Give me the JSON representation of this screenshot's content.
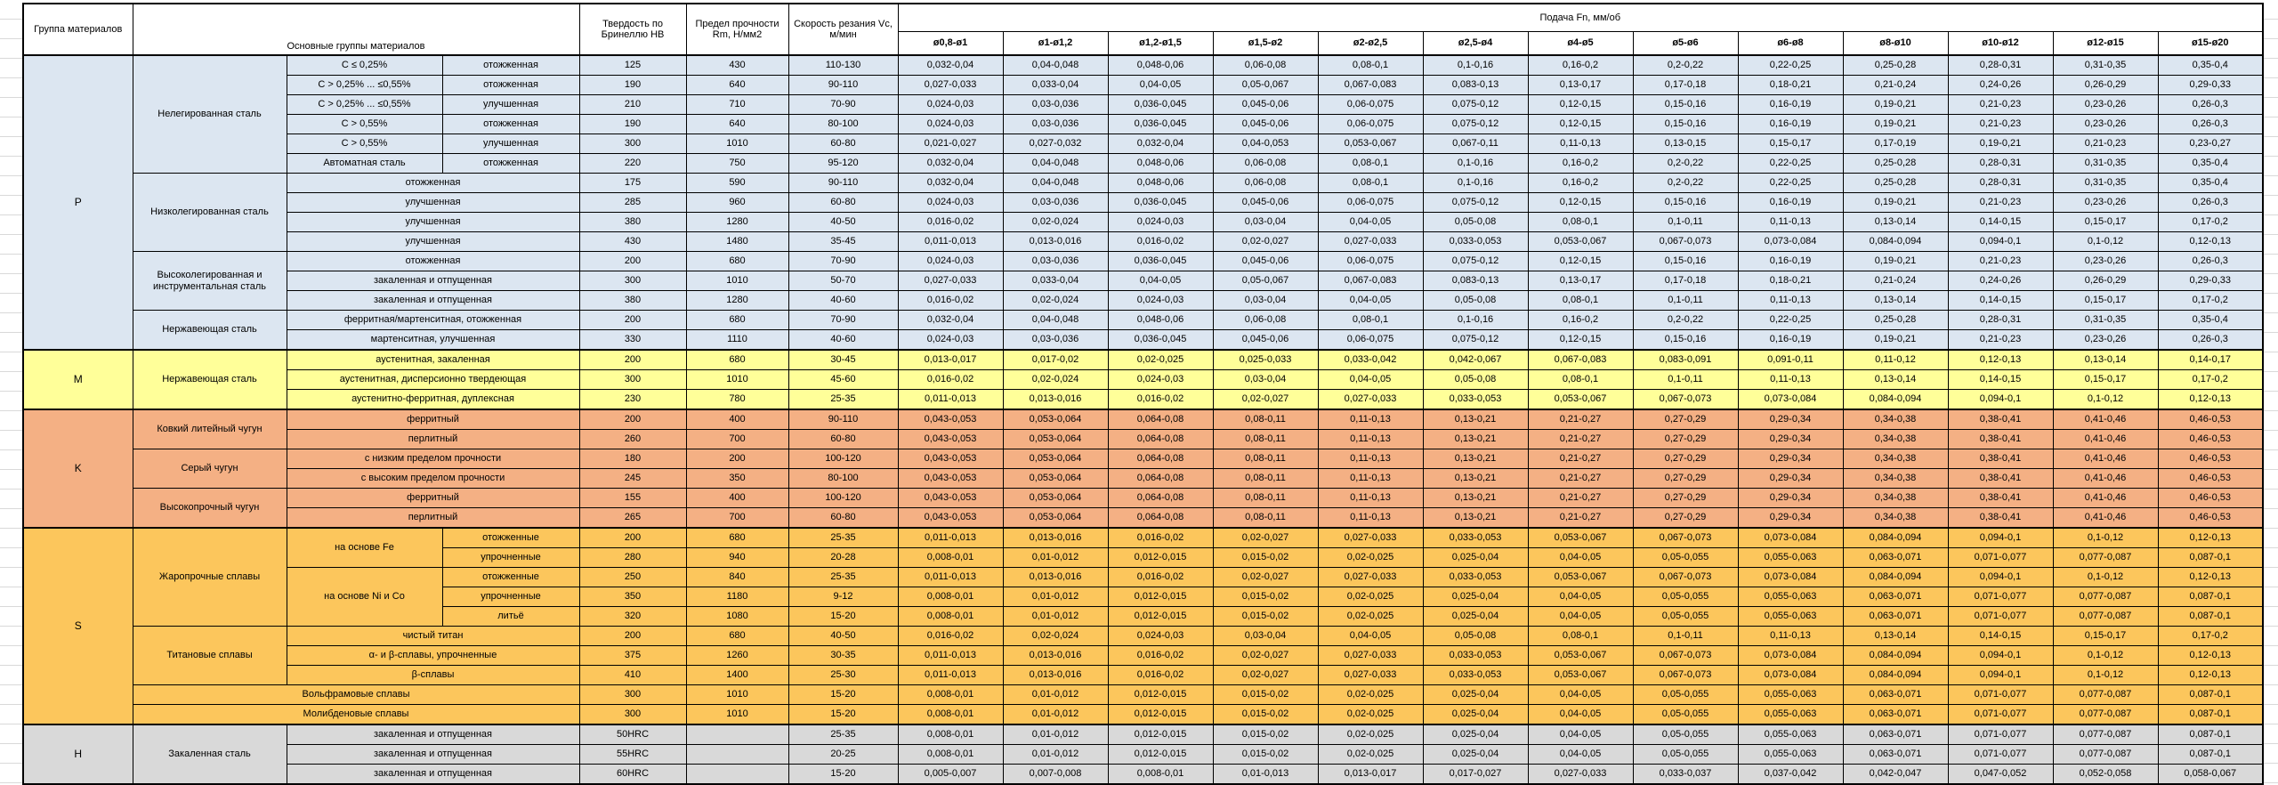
{
  "header": {
    "group_col": "Группа материалов",
    "materials_col": "Основные группы материалов",
    "hardness_col": "Твердость по Бринеллю HB",
    "strength_col": "Предел прочности Rm, Н/мм2",
    "speed_col": "Скорость резания Vc, м/мин",
    "feed_col": "Подача Fn, мм/об",
    "diameters": [
      "ø0,8-ø1",
      "ø1-ø1,2",
      "ø1,2-ø1,5",
      "ø1,5-ø2",
      "ø2-ø2,5",
      "ø2,5-ø4",
      "ø4-ø5",
      "ø5-ø6",
      "ø6-ø8",
      "ø8-ø10",
      "ø10-ø12",
      "ø12-ø15",
      "ø15-ø20"
    ]
  },
  "colors": {
    "P": "#DCE6F1",
    "M": "#FFFF99",
    "K": "#F4B084",
    "S": "#FCC65C",
    "H": "#D9D9D9"
  },
  "feed_patterns": {
    "A": [
      "0,032-0,04",
      "0,04-0,048",
      "0,048-0,06",
      "0,06-0,08",
      "0,08-0,1",
      "0,1-0,16",
      "0,16-0,2",
      "0,2-0,22",
      "0,22-0,25",
      "0,25-0,28",
      "0,28-0,31",
      "0,31-0,35",
      "0,35-0,4"
    ],
    "B": [
      "0,027-0,033",
      "0,033-0,04",
      "0,04-0,05",
      "0,05-0,067",
      "0,067-0,083",
      "0,083-0,13",
      "0,13-0,17",
      "0,17-0,18",
      "0,18-0,21",
      "0,21-0,24",
      "0,24-0,26",
      "0,26-0,29",
      "0,29-0,33"
    ],
    "C": [
      "0,024-0,03",
      "0,03-0,036",
      "0,036-0,045",
      "0,045-0,06",
      "0,06-0,075",
      "0,075-0,12",
      "0,12-0,15",
      "0,15-0,16",
      "0,16-0,19",
      "0,19-0,21",
      "0,21-0,23",
      "0,23-0,26",
      "0,26-0,3"
    ],
    "D": [
      "0,021-0,027",
      "0,027-0,032",
      "0,032-0,04",
      "0,04-0,053",
      "0,053-0,067",
      "0,067-0,11",
      "0,11-0,13",
      "0,13-0,15",
      "0,15-0,17",
      "0,17-0,19",
      "0,19-0,21",
      "0,21-0,23",
      "0,23-0,27"
    ],
    "E": [
      "0,016-0,02",
      "0,02-0,024",
      "0,024-0,03",
      "0,03-0,04",
      "0,04-0,05",
      "0,05-0,08",
      "0,08-0,1",
      "0,1-0,11",
      "0,11-0,13",
      "0,13-0,14",
      "0,14-0,15",
      "0,15-0,17",
      "0,17-0,2"
    ],
    "F": [
      "0,011-0,013",
      "0,013-0,016",
      "0,016-0,02",
      "0,02-0,027",
      "0,027-0,033",
      "0,033-0,053",
      "0,053-0,067",
      "0,067-0,073",
      "0,073-0,084",
      "0,084-0,094",
      "0,094-0,1",
      "0,1-0,12",
      "0,12-0,13"
    ],
    "G": [
      "0,008-0,01",
      "0,01-0,012",
      "0,012-0,015",
      "0,015-0,02",
      "0,02-0,025",
      "0,025-0,04",
      "0,04-0,05",
      "0,05-0,055",
      "0,055-0,063",
      "0,063-0,071",
      "0,071-0,077",
      "0,077-0,087",
      "0,087-0,1"
    ],
    "K": [
      "0,043-0,053",
      "0,053-0,064",
      "0,064-0,08",
      "0,08-0,11",
      "0,11-0,13",
      "0,13-0,21",
      "0,21-0,27",
      "0,27-0,29",
      "0,29-0,34",
      "0,34-0,38",
      "0,38-0,41",
      "0,41-0,46",
      "0,46-0,53"
    ],
    "M1": [
      "0,013-0,017",
      "0,017-0,02",
      "0,02-0,025",
      "0,025-0,033",
      "0,033-0,042",
      "0,042-0,067",
      "0,067-0,083",
      "0,083-0,091",
      "0,091-0,11",
      "0,11-0,12",
      "0,12-0,13",
      "0,13-0,14",
      "0,14-0,17"
    ],
    "H3": [
      "0,005-0,007",
      "0,007-0,008",
      "0,008-0,01",
      "0,01-0,013",
      "0,013-0,017",
      "0,017-0,027",
      "0,027-0,033",
      "0,033-0,037",
      "0,037-0,042",
      "0,042-0,047",
      "0,047-0,052",
      "0,052-0,058",
      "0,058-0,067"
    ]
  },
  "groups": [
    {
      "letter": "P",
      "rows": [
        {
          "cells": [
            {
              "t": "Нелегированная сталь",
              "rs": 6
            },
            {
              "t": "C ≤ 0,25%"
            },
            {
              "t": "отожженная"
            }
          ],
          "hb": "125",
          "rm": "430",
          "vc": "110-130",
          "feeds": "A"
        },
        {
          "cells": [
            {
              "t": "C > 0,25% ... ≤0,55%"
            },
            {
              "t": "отожженная"
            }
          ],
          "hb": "190",
          "rm": "640",
          "vc": "90-110",
          "feeds": "B"
        },
        {
          "cells": [
            {
              "t": "C > 0,25% ... ≤0,55%"
            },
            {
              "t": "улучшенная"
            }
          ],
          "hb": "210",
          "rm": "710",
          "vc": "70-90",
          "feeds": "C"
        },
        {
          "cells": [
            {
              "t": "C > 0,55%"
            },
            {
              "t": "отожженная"
            }
          ],
          "hb": "190",
          "rm": "640",
          "vc": "80-100",
          "feeds": "C"
        },
        {
          "cells": [
            {
              "t": "C > 0,55%"
            },
            {
              "t": "улучшенная"
            }
          ],
          "hb": "300",
          "rm": "1010",
          "vc": "60-80",
          "feeds": "D"
        },
        {
          "cells": [
            {
              "t": "Автоматная сталь"
            },
            {
              "t": "отожженная"
            }
          ],
          "hb": "220",
          "rm": "750",
          "vc": "95-120",
          "feeds": "A"
        },
        {
          "cells": [
            {
              "t": "Низколегированная сталь",
              "rs": 4
            },
            {
              "t": "отожженная",
              "cs": 2
            }
          ],
          "hb": "175",
          "rm": "590",
          "vc": "90-110",
          "feeds": "A"
        },
        {
          "cells": [
            {
              "t": "улучшенная",
              "cs": 2
            }
          ],
          "hb": "285",
          "rm": "960",
          "vc": "60-80",
          "feeds": "C"
        },
        {
          "cells": [
            {
              "t": "улучшенная",
              "cs": 2
            }
          ],
          "hb": "380",
          "rm": "1280",
          "vc": "40-50",
          "feeds": "E"
        },
        {
          "cells": [
            {
              "t": "улучшенная",
              "cs": 2
            }
          ],
          "hb": "430",
          "rm": "1480",
          "vc": "35-45",
          "feeds": "F"
        },
        {
          "cells": [
            {
              "t": "Высоколегированная и инструментальная сталь",
              "rs": 3
            },
            {
              "t": "отожженная",
              "cs": 2
            }
          ],
          "hb": "200",
          "rm": "680",
          "vc": "70-90",
          "feeds": "C"
        },
        {
          "cells": [
            {
              "t": "закаленная и отпущенная",
              "cs": 2
            }
          ],
          "hb": "300",
          "rm": "1010",
          "vc": "50-70",
          "feeds": "B"
        },
        {
          "cells": [
            {
              "t": "закаленная и отпущенная",
              "cs": 2
            }
          ],
          "hb": "380",
          "rm": "1280",
          "vc": "40-60",
          "feeds": "E"
        },
        {
          "cells": [
            {
              "t": "Нержавеющая сталь",
              "rs": 2
            },
            {
              "t": "ферритная/мартенситная, отожженная",
              "cs": 2
            }
          ],
          "hb": "200",
          "rm": "680",
          "vc": "70-90",
          "feeds": "A"
        },
        {
          "cells": [
            {
              "t": "мартенситная, улучшенная",
              "cs": 2
            }
          ],
          "hb": "330",
          "rm": "1110",
          "vc": "40-60",
          "feeds": "C"
        }
      ]
    },
    {
      "letter": "M",
      "rows": [
        {
          "cells": [
            {
              "t": "Нержавеющая сталь",
              "rs": 3
            },
            {
              "t": "аустенитная, закаленная",
              "cs": 2
            }
          ],
          "hb": "200",
          "rm": "680",
          "vc": "30-45",
          "feeds": "M1"
        },
        {
          "cells": [
            {
              "t": "аустенитная, дисперсионно твердеющая",
              "cs": 2
            }
          ],
          "hb": "300",
          "rm": "1010",
          "vc": "45-60",
          "feeds": "E"
        },
        {
          "cells": [
            {
              "t": "аустенитно-ферритная, дуплексная",
              "cs": 2
            }
          ],
          "hb": "230",
          "rm": "780",
          "vc": "25-35",
          "feeds": "F"
        }
      ]
    },
    {
      "letter": "K",
      "rows": [
        {
          "cells": [
            {
              "t": "Ковкий литейный чугун",
              "rs": 2
            },
            {
              "t": "ферритный",
              "cs": 2
            }
          ],
          "hb": "200",
          "rm": "400",
          "vc": "90-110",
          "feeds": "K"
        },
        {
          "cells": [
            {
              "t": "перлитный",
              "cs": 2
            }
          ],
          "hb": "260",
          "rm": "700",
          "vc": "60-80",
          "feeds": "K"
        },
        {
          "cells": [
            {
              "t": "Серый чугун",
              "rs": 2
            },
            {
              "t": "с низким пределом прочности",
              "cs": 2
            }
          ],
          "hb": "180",
          "rm": "200",
          "vc": "100-120",
          "feeds": "K"
        },
        {
          "cells": [
            {
              "t": "с высоким пределом прочности",
              "cs": 2
            }
          ],
          "hb": "245",
          "rm": "350",
          "vc": "80-100",
          "feeds": "K"
        },
        {
          "cells": [
            {
              "t": "Высокопрочный чугун",
              "rs": 2
            },
            {
              "t": "ферритный",
              "cs": 2
            }
          ],
          "hb": "155",
          "rm": "400",
          "vc": "100-120",
          "feeds": "K"
        },
        {
          "cells": [
            {
              "t": "перлитный",
              "cs": 2
            }
          ],
          "hb": "265",
          "rm": "700",
          "vc": "60-80",
          "feeds": "K"
        }
      ]
    },
    {
      "letter": "S",
      "rows": [
        {
          "cells": [
            {
              "t": "Жаропрочные сплавы",
              "rs": 5
            },
            {
              "t": "на основе Fe",
              "rs": 2
            },
            {
              "t": "отожженные"
            }
          ],
          "hb": "200",
          "rm": "680",
          "vc": "25-35",
          "feeds": "F"
        },
        {
          "cells": [
            {
              "t": "упрочненные"
            }
          ],
          "hb": "280",
          "rm": "940",
          "vc": "20-28",
          "feeds": "G"
        },
        {
          "cells": [
            {
              "t": "на основе Ni и Co",
              "rs": 3
            },
            {
              "t": "отожженные"
            }
          ],
          "hb": "250",
          "rm": "840",
          "vc": "25-35",
          "feeds": "F"
        },
        {
          "cells": [
            {
              "t": "упрочненные"
            }
          ],
          "hb": "350",
          "rm": "1180",
          "vc": "9-12",
          "feeds": "G"
        },
        {
          "cells": [
            {
              "t": "литьё"
            }
          ],
          "hb": "320",
          "rm": "1080",
          "vc": "15-20",
          "feeds": "G"
        },
        {
          "cells": [
            {
              "t": "Титановые сплавы",
              "rs": 3
            },
            {
              "t": "чистый титан",
              "cs": 2
            }
          ],
          "hb": "200",
          "rm": "680",
          "vc": "40-50",
          "feeds": "E"
        },
        {
          "cells": [
            {
              "t": "α- и β-сплавы, упрочненные",
              "cs": 2
            }
          ],
          "hb": "375",
          "rm": "1260",
          "vc": "30-35",
          "feeds": "F"
        },
        {
          "cells": [
            {
              "t": "β-сплавы",
              "cs": 2
            }
          ],
          "hb": "410",
          "rm": "1400",
          "vc": "25-30",
          "feeds": "F"
        },
        {
          "cells": [
            {
              "t": "Вольфрамовые сплавы",
              "cs": 3
            }
          ],
          "hb": "300",
          "rm": "1010",
          "vc": "15-20",
          "feeds": "G"
        },
        {
          "cells": [
            {
              "t": "Молибденовые сплавы",
              "cs": 3
            }
          ],
          "hb": "300",
          "rm": "1010",
          "vc": "15-20",
          "feeds": "G"
        }
      ]
    },
    {
      "letter": "H",
      "rows": [
        {
          "cells": [
            {
              "t": "Закаленная сталь",
              "rs": 3
            },
            {
              "t": "закаленная и отпущенная",
              "cs": 2
            }
          ],
          "hb": "50HRC",
          "rm": "",
          "vc": "25-35",
          "feeds": "G"
        },
        {
          "cells": [
            {
              "t": "закаленная и отпущенная",
              "cs": 2
            }
          ],
          "hb": "55HRC",
          "rm": "",
          "vc": "20-25",
          "feeds": "G"
        },
        {
          "cells": [
            {
              "t": "закаленная и отпущенная",
              "cs": 2
            }
          ],
          "hb": "60HRC",
          "rm": "",
          "vc": "15-20",
          "feeds": "H3"
        }
      ]
    }
  ]
}
